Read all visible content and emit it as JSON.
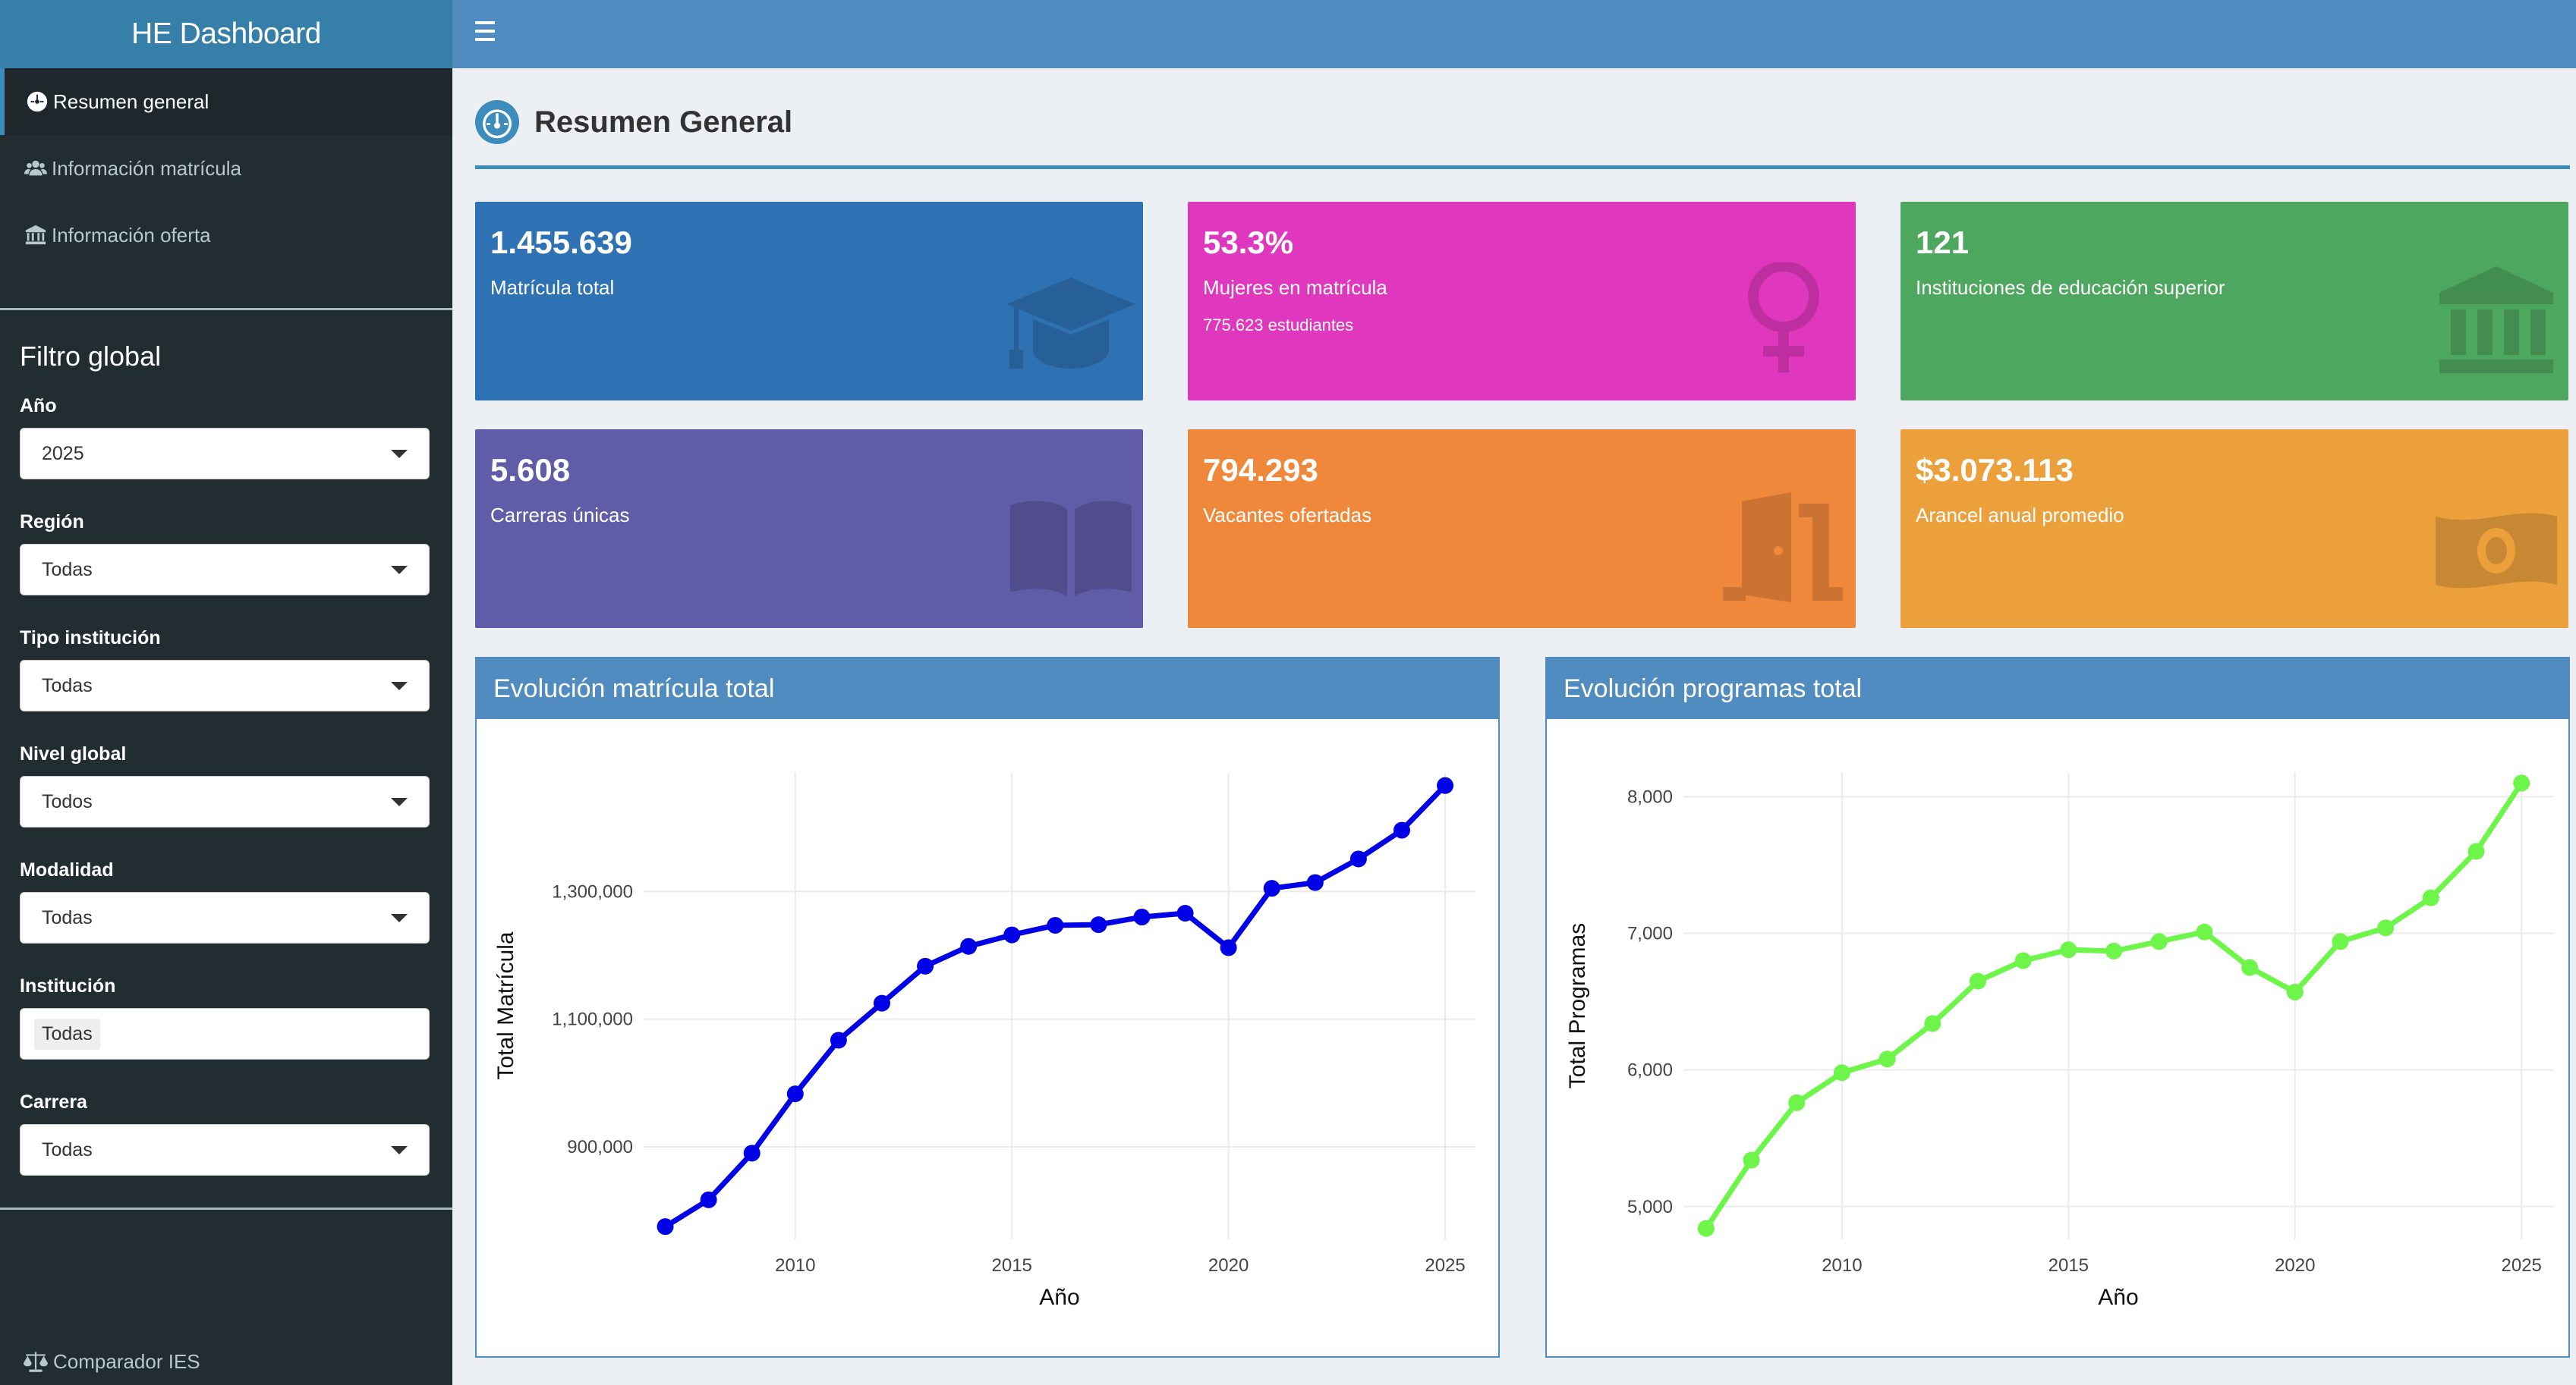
{
  "app": {
    "title": "HE Dashboard"
  },
  "sidebar": {
    "menu": [
      {
        "label": "Resumen general",
        "icon": "dashboard-icon"
      },
      {
        "label": "Información matrícula",
        "icon": "users-icon"
      },
      {
        "label": "Información oferta",
        "icon": "institution-icon"
      }
    ],
    "filter_title": "Filtro global",
    "filters": [
      {
        "label": "Año",
        "value": "2025"
      },
      {
        "label": "Región",
        "value": "Todas"
      },
      {
        "label": "Tipo institución",
        "value": "Todas"
      },
      {
        "label": "Nivel global",
        "value": "Todos"
      },
      {
        "label": "Modalidad",
        "value": "Todas"
      },
      {
        "label": "Institución",
        "value": "Todas"
      },
      {
        "label": "Carrera",
        "value": "Todas"
      }
    ],
    "bottom_item": {
      "label": "Comparador IES",
      "icon": "balance-scale-icon"
    }
  },
  "header": {
    "menu_icon": "hamburger-icon"
  },
  "page": {
    "title": "Resumen General",
    "icon": "tachometer-icon"
  },
  "value_boxes": [
    {
      "value": "1.455.639",
      "label": "Matrícula total",
      "sub": "",
      "color": "#2f72b4",
      "icon": "graduation-cap-icon"
    },
    {
      "value": "53.3%",
      "label": "Mujeres en matrícula",
      "sub": "775.623 estudiantes",
      "color": "#df37bd",
      "icon": "venus-icon"
    },
    {
      "value": "121",
      "label": "Instituciones de educación superior",
      "sub": "",
      "color": "#4ea75e",
      "icon": "institution-icon"
    },
    {
      "value": "5.608",
      "label": "Carreras únicas",
      "sub": "",
      "color": "#605ca7",
      "icon": "book-open-icon"
    },
    {
      "value": "794.293",
      "label": "Vacantes ofertadas",
      "sub": "",
      "color": "#f0883b",
      "icon": "door-open-icon"
    },
    {
      "value": "$3.073.113",
      "label": "Arancel anual promedio",
      "sub": "",
      "color": "#eca03c",
      "icon": "money-bill-icon"
    }
  ],
  "chart_data": [
    {
      "type": "line",
      "title": "Evolución matrícula total",
      "xlabel": "Año",
      "ylabel": "Total Matrícula",
      "x": [
        2007,
        2008,
        2009,
        2010,
        2011,
        2012,
        2013,
        2014,
        2015,
        2016,
        2017,
        2018,
        2019,
        2020,
        2021,
        2022,
        2023,
        2024,
        2025
      ],
      "series": [
        {
          "values": [
            775000,
            817000,
            890000,
            983000,
            1067000,
            1125000,
            1183000,
            1214000,
            1232000,
            1247000,
            1248000,
            1260000,
            1266000,
            1212000,
            1305000,
            1314000,
            1351000,
            1396000,
            1466000
          ],
          "color": "#0000e6"
        }
      ],
      "xticks": [
        2010,
        2015,
        2020,
        2025
      ],
      "yticks": [
        900000,
        1100000,
        1300000
      ],
      "ytick_labels": [
        "900,000",
        "1,100,000",
        "1,300,000"
      ],
      "xlim": [
        2006.5,
        2025.7
      ],
      "ylim": [
        755000,
        1487000
      ],
      "grid": true
    },
    {
      "type": "line",
      "title": "Evolución programas total",
      "xlabel": "Año",
      "ylabel": "Total Programas",
      "x": [
        2007,
        2008,
        2009,
        2010,
        2011,
        2012,
        2013,
        2014,
        2015,
        2016,
        2017,
        2018,
        2019,
        2020,
        2021,
        2022,
        2023,
        2024,
        2025
      ],
      "series": [
        {
          "values": [
            4840,
            5340,
            5760,
            5980,
            6080,
            6340,
            6650,
            6800,
            6880,
            6870,
            6940,
            7010,
            6750,
            6570,
            6940,
            7040,
            7260,
            7600,
            8100
          ],
          "color": "#6ef54a"
        }
      ],
      "xticks": [
        2010,
        2015,
        2020,
        2025
      ],
      "yticks": [
        5000,
        6000,
        7000,
        8000
      ],
      "ytick_labels": [
        "5,000",
        "6,000",
        "7,000",
        "8,000"
      ],
      "xlim": [
        2006.5,
        2025.7
      ],
      "ylim": [
        4760,
        8180
      ],
      "grid": true
    }
  ]
}
